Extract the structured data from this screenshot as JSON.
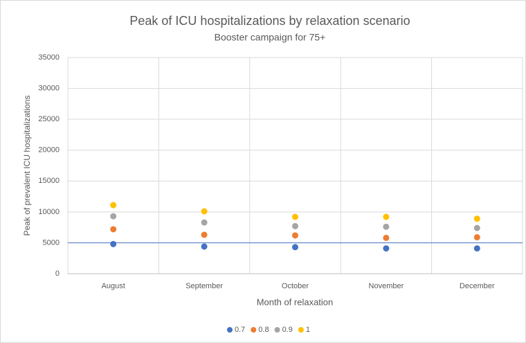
{
  "chart_data": {
    "type": "scatter",
    "title": "Peak of ICU hospitalizations by relaxation scenario",
    "subtitle": "Booster campaign for 75+",
    "x_label": "Month of relaxation",
    "y_label": "Peak of prevalent ICU hospitalizations",
    "categories": [
      "August",
      "September",
      "October",
      "November",
      "December"
    ],
    "series": [
      {
        "name": "0.7",
        "color": "#4472c4",
        "values": [
          4800,
          4400,
          4300,
          4100,
          4100
        ]
      },
      {
        "name": "0.8",
        "color": "#ed7d31",
        "values": [
          7200,
          6300,
          6200,
          5800,
          5900
        ]
      },
      {
        "name": "0.9",
        "color": "#a5a5a5",
        "values": [
          9300,
          8300,
          7700,
          7600,
          7400
        ]
      },
      {
        "name": "1",
        "color": "#ffc000",
        "values": [
          11100,
          10100,
          9200,
          9200,
          8900
        ]
      }
    ],
    "reference_line": {
      "value": 5000,
      "color": "#4472c4"
    },
    "ylim": [
      0,
      35000
    ],
    "yticks": [
      0,
      5000,
      10000,
      15000,
      20000,
      25000,
      30000,
      35000
    ],
    "grid": true,
    "legend": "bottom"
  }
}
